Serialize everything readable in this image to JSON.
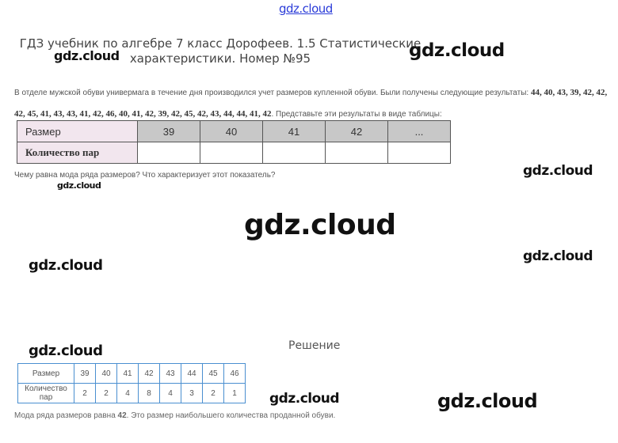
{
  "watermark": "gdz.cloud",
  "title": "ГДЗ учебник по алгебре 7 класс Дорофеев. 1.5 Статистические характеристики. Номер №95",
  "task": {
    "text": "В отделе мужской обуви универмага в течение дня производился учет размеров купленной обуви. Были получены следующие результаты: ",
    "data": "44, 40, 43, 39, 42, 42, 42, 45, 41, 43, 43, 41, 42, 46, 40, 41, 42, 39, 42, 45, 42, 43, 44, 44, 41, 42",
    "tail": ". Представьте эти результаты в виде таблицы:"
  },
  "task_table": {
    "row1_label": "Размер",
    "sizes": [
      "39",
      "40",
      "41",
      "42",
      "..."
    ],
    "row2_label": "Количество пар"
  },
  "question": "Чему равна мода ряда размеров? Что характеризует этот показатель?",
  "solution_label": "Решение",
  "solution_table": {
    "row1_label": "Размер",
    "sizes": [
      "39",
      "40",
      "41",
      "42",
      "43",
      "44",
      "45",
      "46"
    ],
    "row2_label": "Количество пар",
    "counts": [
      "2",
      "2",
      "4",
      "8",
      "4",
      "3",
      "2",
      "1"
    ]
  },
  "answer": {
    "pre": "Мода ряда размеров равна ",
    "value": "42",
    "post": ". Это размер наибольшего количества проданной обуви."
  }
}
